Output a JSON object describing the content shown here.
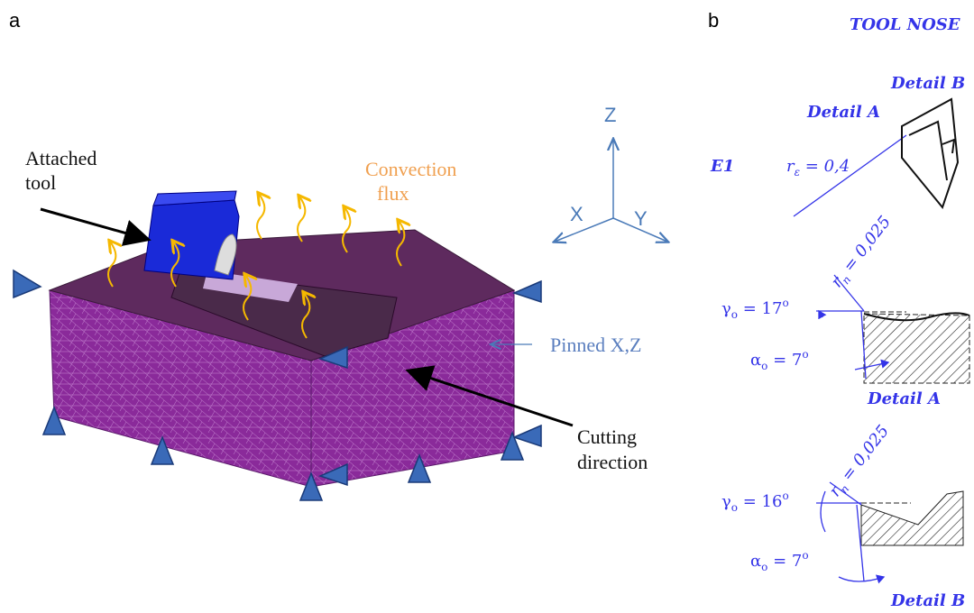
{
  "panels": {
    "a": "a",
    "b": "b"
  },
  "left": {
    "attached_tool": [
      "Attached",
      "tool"
    ],
    "convection_flux": [
      "Convection",
      "flux"
    ],
    "axes": {
      "z": "Z",
      "x": "X",
      "y": "Y"
    },
    "pinned": "Pinned X,Z",
    "cutting_direction": [
      "Cutting",
      "direction"
    ]
  },
  "right": {
    "title": "TOOL NOSE",
    "detail_b_label": "Detail B",
    "detail_a_label": "Detail A",
    "insert": "E1",
    "nose_radius": {
      "symbol": "r",
      "sub": "ε",
      "text": " = 0,4"
    },
    "detail_a": {
      "edge_radius": {
        "symbol": "r",
        "sub": "n",
        "text": " = 0,025"
      },
      "rake": {
        "symbol": "γ",
        "sub": "o",
        "text": " = 17",
        "sup": "o"
      },
      "clearance": {
        "symbol": "α",
        "sub": "o",
        "text": " = 7",
        "sup": "o"
      },
      "caption": "Detail A"
    },
    "detail_b": {
      "edge_radius": {
        "symbol": "r",
        "sub": "n",
        "text": " = 0,025"
      },
      "rake": {
        "symbol": "γ",
        "sub": "o",
        "text": " = 16",
        "sup": "o"
      },
      "clearance": {
        "symbol": "α",
        "sub": "o",
        "text": " = 7",
        "sup": "o"
      },
      "caption": "Detail B"
    }
  }
}
